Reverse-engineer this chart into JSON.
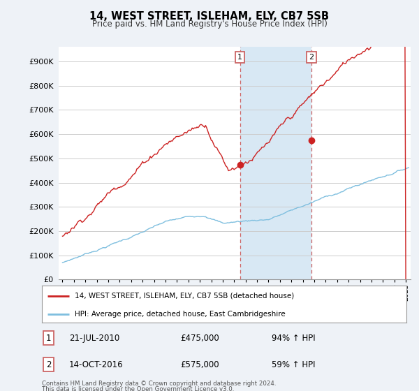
{
  "title": "14, WEST STREET, ISLEHAM, ELY, CB7 5SB",
  "subtitle": "Price paid vs. HM Land Registry's House Price Index (HPI)",
  "yticks": [
    0,
    100000,
    200000,
    300000,
    400000,
    500000,
    600000,
    700000,
    800000,
    900000
  ],
  "ytick_labels": [
    "£0",
    "£100K",
    "£200K",
    "£300K",
    "£400K",
    "£500K",
    "£600K",
    "£700K",
    "£800K",
    "£900K"
  ],
  "ylim": [
    0,
    960000
  ],
  "hpi_color": "#7fbfdf",
  "price_color": "#cc2222",
  "marker1_idx": 186,
  "marker1_price": 475000,
  "marker1_date_str": "21-JUL-2010",
  "marker1_amount": "£475,000",
  "marker1_pct": "94% ↑ HPI",
  "marker2_idx": 261,
  "marker2_price": 575000,
  "marker2_date_str": "14-OCT-2016",
  "marker2_amount": "£575,000",
  "marker2_pct": "59% ↑ HPI",
  "legend_house": "14, WEST STREET, ISLEHAM, ELY, CB7 5SB (detached house)",
  "legend_hpi": "HPI: Average price, detached house, East Cambridgeshire",
  "footnote1": "Contains HM Land Registry data © Crown copyright and database right 2024.",
  "footnote2": "This data is licensed under the Open Government Licence v3.0.",
  "background_color": "#eef2f7",
  "plot_bg": "#ffffff",
  "highlight_bg": "#d8e8f4",
  "vline_color": "#cc6666",
  "grid_color": "#cccccc",
  "n_months": 364,
  "start_year": 1995
}
